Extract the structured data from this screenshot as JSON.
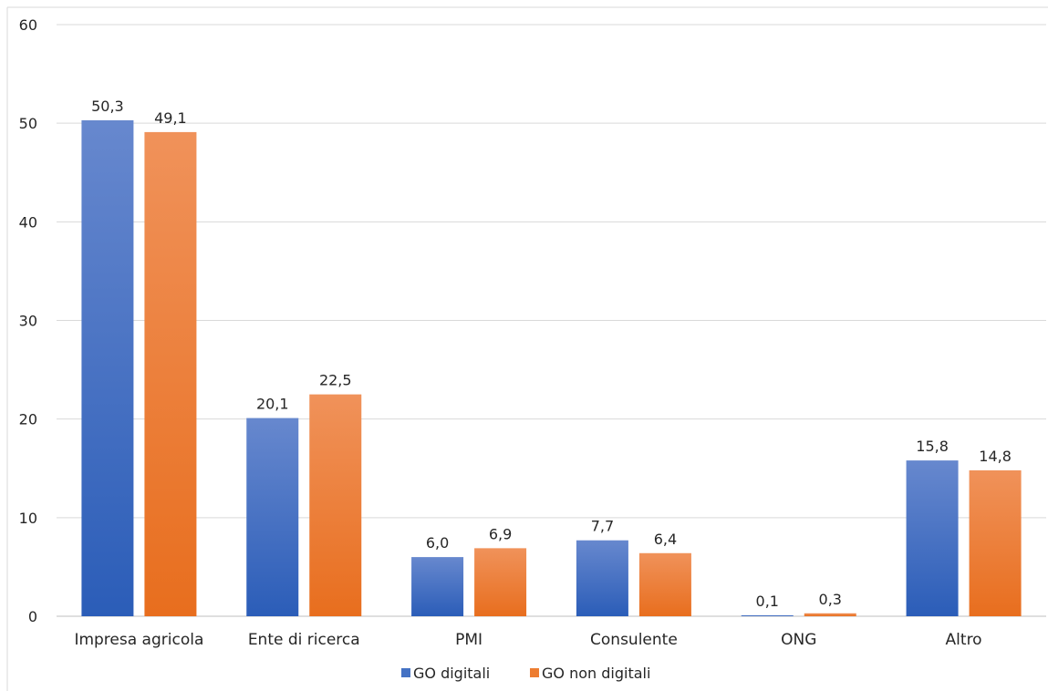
{
  "chart_data": {
    "type": "bar",
    "categories": [
      "Impresa agricola",
      "Ente di ricerca",
      "PMI",
      "Consulente",
      "ONG",
      "Altro"
    ],
    "series": [
      {
        "name": "GO digitali",
        "values": [
          50.3,
          20.1,
          6.0,
          7.7,
          0.1,
          15.8
        ],
        "labels": [
          "50,3",
          "20,1",
          "6,0",
          "7,7",
          "0,1",
          "15,8"
        ],
        "color": "#4472C4",
        "gradient_top": "#6788CE",
        "gradient_bottom": "#2B5DB8"
      },
      {
        "name": "GO non digitali",
        "values": [
          49.1,
          22.5,
          6.9,
          6.4,
          0.3,
          14.8
        ],
        "labels": [
          "49,1",
          "22,5",
          "6,9",
          "6,4",
          "0,3",
          "14,8"
        ],
        "color": "#ED7D31",
        "gradient_top": "#F0925A",
        "gradient_bottom": "#E86E1E"
      }
    ],
    "yticks": [
      "0",
      "10",
      "20",
      "30",
      "40",
      "50",
      "60"
    ],
    "ylim": [
      0,
      60
    ],
    "grid": true,
    "legend_position": "bottom",
    "title": "",
    "xlabel": "",
    "ylabel": ""
  }
}
